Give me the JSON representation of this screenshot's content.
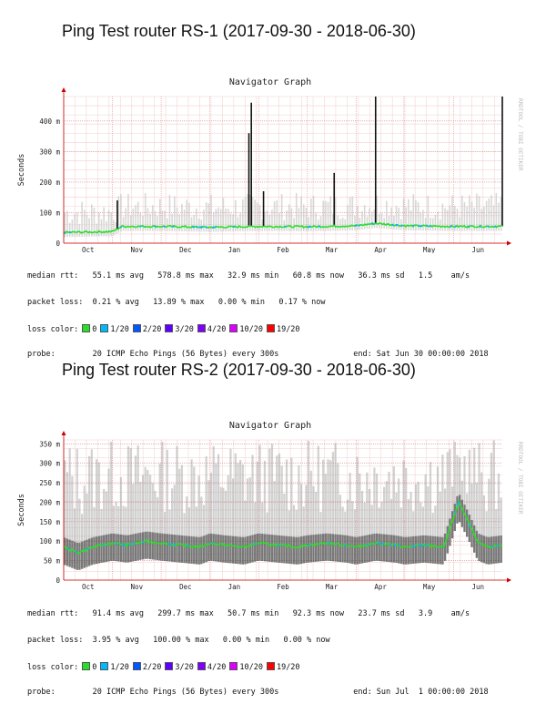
{
  "titles": [
    "Ping Test router RS-1 (2017-09-30 - 2018-06-30)",
    "Ping Test router RS-2 (2017-09-30 - 2018-06-30)"
  ],
  "loss_colors": [
    {
      "label": "0",
      "color": "#26e026"
    },
    {
      "label": "1/20",
      "color": "#00b8ff"
    },
    {
      "label": "2/20",
      "color": "#0059ff"
    },
    {
      "label": "3/20",
      "color": "#5e00ff"
    },
    {
      "label": "4/20",
      "color": "#7e00ff"
    },
    {
      "label": "10/20",
      "color": "#dd00ff"
    },
    {
      "label": "19/20",
      "color": "#ff0000"
    }
  ],
  "chart_data": [
    {
      "type": "line",
      "title": "Navigator Graph",
      "ylabel": "Seconds",
      "side_label": "RRDTOOL / TOBI OETIKER",
      "ylim_ms": [
        0,
        480
      ],
      "yticks": [
        "0",
        "100 m",
        "200 m",
        "300 m",
        "400 m"
      ],
      "ytick_values_ms": [
        0,
        100,
        200,
        300,
        400
      ],
      "x_categories": [
        "Oct",
        "Nov",
        "Dec",
        "Jan",
        "Feb",
        "Mar",
        "Apr",
        "May",
        "Jun"
      ],
      "series": [
        {
          "name": "median rtt",
          "x_month": [
            0,
            1.0,
            1.2,
            2,
            3,
            4,
            5,
            6,
            6.4,
            7,
            8,
            9
          ],
          "y_ms": [
            35,
            38,
            55,
            55,
            52,
            55,
            54,
            57,
            65,
            57,
            55,
            55
          ]
        }
      ],
      "spikes_ms": [
        {
          "x_month": 1.1,
          "y_ms": 140
        },
        {
          "x_month": 3.85,
          "y_ms": 460
        },
        {
          "x_month": 3.8,
          "y_ms": 360
        },
        {
          "x_month": 4.1,
          "y_ms": 170
        },
        {
          "x_month": 5.55,
          "y_ms": 230
        },
        {
          "x_month": 6.4,
          "y_ms": 480
        },
        {
          "x_month": 9.0,
          "y_ms": 480
        }
      ],
      "stats": {
        "median_rtt": "median rtt:   55.1 ms avg   578.8 ms max   32.9 ms min   60.8 ms now   36.3 ms sd   1.5    am/s",
        "packet_loss": "packet loss:  0.21 % avg   13.89 % max   0.00 % min   0.17 % now",
        "loss_color_label": "loss color:",
        "probe": "probe:        20 ICMP Echo Pings (56 Bytes) every 300s                end: Sat Jun 30 00:00:00 2018"
      }
    },
    {
      "type": "line",
      "title": "Navigator Graph",
      "ylabel": "Seconds",
      "side_label": "RRDTOOL / TOBI OETIKER",
      "ylim_ms": [
        0,
        360
      ],
      "yticks": [
        "0",
        "50 m",
        "100 m",
        "150 m",
        "200 m",
        "250 m",
        "300 m",
        "350 m"
      ],
      "ytick_values_ms": [
        0,
        50,
        100,
        150,
        200,
        250,
        300,
        350
      ],
      "x_categories": [
        "Oct",
        "Nov",
        "Dec",
        "Jan",
        "Feb",
        "Mar",
        "Apr",
        "May",
        "Jun"
      ],
      "series": [
        {
          "name": "median rtt",
          "x_month": [
            0,
            0.3,
            0.6,
            1,
            1.3,
            1.7,
            2,
            2.4,
            2.8,
            3,
            3.3,
            3.7,
            4,
            4.4,
            4.8,
            5,
            5.4,
            5.8,
            6,
            6.4,
            6.8,
            7,
            7.4,
            7.8,
            8.1,
            8.3,
            8.5,
            8.7,
            9
          ],
          "y_ms": [
            85,
            70,
            85,
            95,
            90,
            100,
            95,
            90,
            85,
            95,
            90,
            85,
            95,
            90,
            85,
            90,
            95,
            90,
            85,
            95,
            90,
            85,
            90,
            85,
            200,
            150,
            95,
            85,
            90
          ]
        }
      ],
      "stats": {
        "median_rtt": "median rtt:   91.4 ms avg   299.7 ms max   50.7 ms min   92.3 ms now   23.7 ms sd   3.9    am/s",
        "packet_loss": "packet loss:  3.95 % avg   100.00 % max   0.00 % min   0.00 % now",
        "loss_color_label": "loss color:",
        "probe": "probe:        20 ICMP Echo Pings (56 Bytes) every 300s                end: Sun Jul  1 00:00:00 2018"
      }
    }
  ]
}
